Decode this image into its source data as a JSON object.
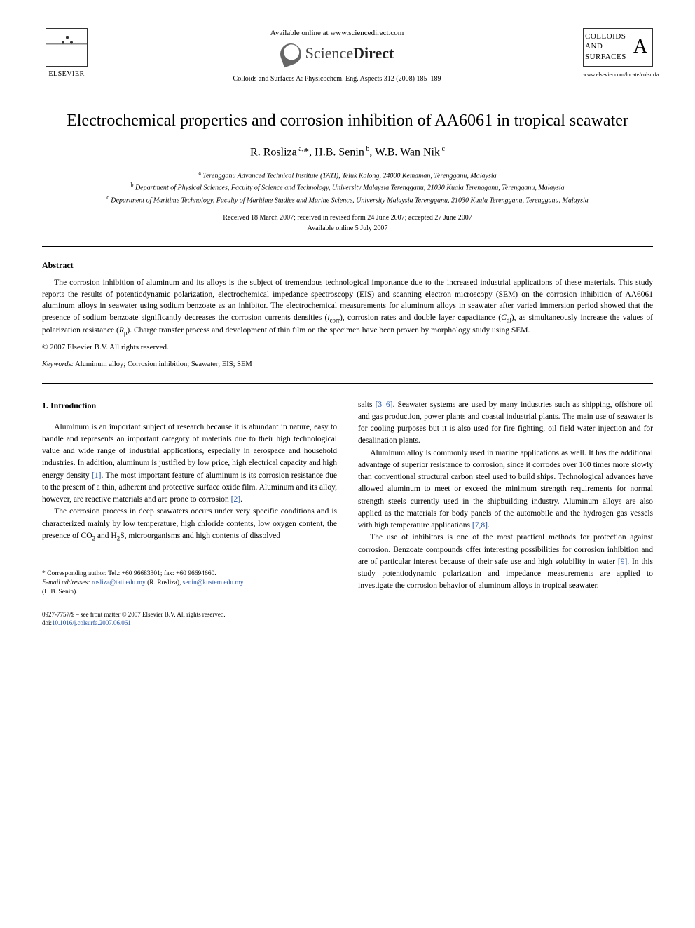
{
  "header": {
    "available_online": "Available online at www.sciencedirect.com",
    "sd_logo_text_light": "Science",
    "sd_logo_text_bold": "Direct",
    "journal_ref": "Colloids and Surfaces A: Physicochem. Eng. Aspects 312 (2008) 185–189",
    "elsevier_label": "ELSEVIER",
    "cover_line1": "COLLOIDS",
    "cover_line2": "AND",
    "cover_line3": "SURFACES",
    "cover_letter": "A",
    "journal_url": "www.elsevier.com/locate/colsurfa"
  },
  "article": {
    "title": "Electrochemical properties and corrosion inhibition of AA6061 in tropical seawater",
    "authors_html": "R. Rosliza <sup>a,</sup>*, H.B. Senin <sup>b</sup>, W.B. Wan Nik <sup>c</sup>",
    "affiliations": {
      "a": "Terengganu Advanced Technical Institute (TATI), Teluk Kalong, 24000 Kemaman, Terengganu, Malaysia",
      "b": "Department of Physical Sciences, Faculty of Science and Technology, University Malaysia Terengganu, 21030 Kuala Terengganu, Terengganu, Malaysia",
      "c": "Department of Maritime Technology, Faculty of Maritime Studies and Marine Science, University Malaysia Terengganu, 21030 Kuala Terengganu, Terengganu, Malaysia"
    },
    "dates_line1": "Received 18 March 2007; received in revised form 24 June 2007; accepted 27 June 2007",
    "dates_line2": "Available online 5 July 2007"
  },
  "abstract": {
    "heading": "Abstract",
    "text": "The corrosion inhibition of aluminum and its alloys is the subject of tremendous technological importance due to the increased industrial applications of these materials. This study reports the results of potentiodynamic polarization, electrochemical impedance spectroscopy (EIS) and scanning electron microscopy (SEM) on the corrosion inhibition of AA6061 aluminum alloys in seawater using sodium benzoate as an inhibitor. The electrochemical measurements for aluminum alloys in seawater after varied immersion period showed that the presence of sodium benzoate significantly decreases the corrosion currents densities (icorr), corrosion rates and double layer capacitance (Cdl), as simultaneously increase the values of polarization resistance (Rp). Charge transfer process and development of thin film on the specimen have been proven by morphology study using SEM.",
    "copyright": "© 2007 Elsevier B.V. All rights reserved.",
    "keywords_label": "Keywords:",
    "keywords": "Aluminum alloy; Corrosion inhibition; Seawater; EIS; SEM"
  },
  "body": {
    "section_heading": "1. Introduction",
    "col1_para1": "Aluminum is an important subject of research because it is abundant in nature, easy to handle and represents an important category of materials due to their high technological value and wide range of industrial applications, especially in aerospace and household industries. In addition, aluminum is justified by low price, high electrical capacity and high energy density [1]. The most important feature of aluminum is its corrosion resistance due to the present of a thin, adherent and protective surface oxide film. Aluminum and its alloy, however, are reactive materials and are prone to corrosion [2].",
    "col1_para2": "The corrosion process in deep seawaters occurs under very specific conditions and is characterized mainly by low temperature, high chloride contents, low oxygen content, the presence of CO2 and H2S, microorganisms and high contents of dissolved",
    "col2_para1": "salts [3–6]. Seawater systems are used by many industries such as shipping, offshore oil and gas production, power plants and coastal industrial plants. The main use of seawater is for cooling purposes but it is also used for fire fighting, oil field water injection and for desalination plants.",
    "col2_para2": "Aluminum alloy is commonly used in marine applications as well. It has the additional advantage of superior resistance to corrosion, since it corrodes over 100 times more slowly than conventional structural carbon steel used to build ships. Technological advances have allowed aluminum to meet or exceed the minimum strength requirements for normal strength steels currently used in the shipbuilding industry. Aluminum alloys are also applied as the materials for body panels of the automobile and the hydrogen gas vessels with high temperature applications [7,8].",
    "col2_para3": "The use of inhibitors is one of the most practical methods for protection against corrosion. Benzoate compounds offer interesting possibilities for corrosion inhibition and are of particular interest because of their safe use and high solubility in water [9]. In this study potentiodynamic polarization and impedance measurements are applied to investigate the corrosion behavior of aluminum alloys in tropical seawater."
  },
  "footnotes": {
    "corr_author": "* Corresponding author. Tel.: +60 96683301; fax: +60 96694660.",
    "email_label": "E-mail addresses:",
    "email1": "rosliza@tati.edu.my",
    "email1_name": "(R. Rosliza),",
    "email2": "senin@kustem.edu.my",
    "email2_name": "(H.B. Senin)."
  },
  "bottom": {
    "issn_line": "0927-7757/$ – see front matter © 2007 Elsevier B.V. All rights reserved.",
    "doi_label": "doi:",
    "doi": "10.1016/j.colsurfa.2007.06.061"
  },
  "refs": {
    "r1": "[1]",
    "r2": "[2]",
    "r36": "[3–6]",
    "r78": "[7,8]",
    "r9": "[9]"
  },
  "colors": {
    "link": "#2050a0",
    "text": "#000000",
    "bg": "#ffffff"
  }
}
